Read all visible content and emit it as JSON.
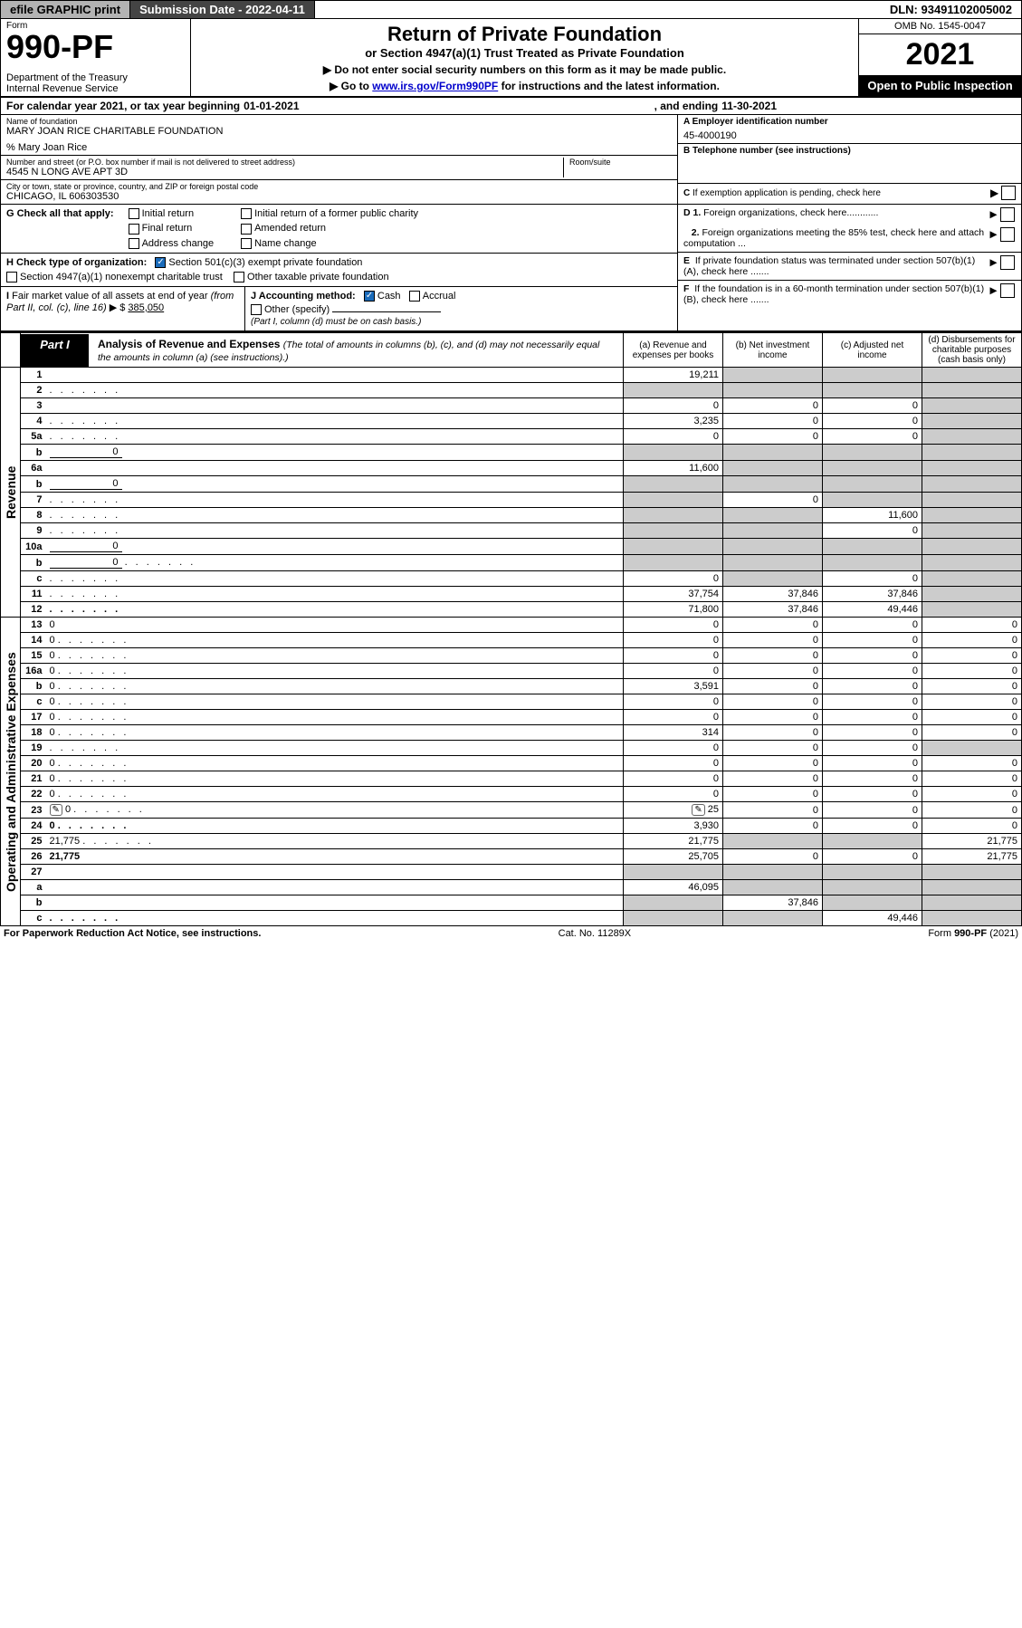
{
  "topbar": {
    "efile": "efile GRAPHIC print",
    "submission": "Submission Date - 2022-04-11",
    "dln": "DLN: 93491102005002"
  },
  "header": {
    "form_label": "Form",
    "form_no": "990-PF",
    "dept": "Department of the Treasury\nInternal Revenue Service",
    "title": "Return of Private Foundation",
    "subtitle": "or Section 4947(a)(1) Trust Treated as Private Foundation",
    "bullet1": "▶ Do not enter social security numbers on this form as it may be made public.",
    "bullet2_pre": "▶ Go to ",
    "bullet2_link": "www.irs.gov/Form990PF",
    "bullet2_post": " for instructions and the latest information.",
    "omb": "OMB No. 1545-0047",
    "year": "2021",
    "openbox": "Open to Public Inspection"
  },
  "yearline": {
    "pre": "For calendar year 2021, or tax year beginning ",
    "begin": "01-01-2021",
    "mid": ", and ending ",
    "end": "11-30-2021"
  },
  "info": {
    "name_label": "Name of foundation",
    "name": "MARY JOAN RICE CHARITABLE FOUNDATION",
    "care_of": "% Mary Joan Rice",
    "addr_label": "Number and street (or P.O. box number if mail is not delivered to street address)",
    "addr": "4545 N LONG AVE APT 3D",
    "room_label": "Room/suite",
    "city_label": "City or town, state or province, country, and ZIP or foreign postal code",
    "city": "CHICAGO, IL  606303530",
    "A_label": "A Employer identification number",
    "A_val": "45-4000190",
    "B_label": "B Telephone number (see instructions)",
    "C_label": "C If exemption application is pending, check here",
    "D1": "D 1. Foreign organizations, check here............",
    "D2": "   2. Foreign organizations meeting the 85% test, check here and attach computation ...",
    "E": "E  If private foundation status was terminated under section 507(b)(1)(A), check here .......",
    "F": "F  If the foundation is in a 60-month termination under section 507(b)(1)(B), check here .......",
    "G_label": "G Check all that apply:",
    "G_opts": [
      "Initial return",
      "Final return",
      "Address change",
      "Initial return of a former public charity",
      "Amended return",
      "Name change"
    ],
    "H_label": "H Check type of organization:",
    "H_501": "Section 501(c)(3) exempt private foundation",
    "H_4947": "Section 4947(a)(1) nonexempt charitable trust",
    "H_other": "Other taxable private foundation",
    "I_label": "I Fair market value of all assets at end of year (from Part II, col. (c), line 16) ▶ $",
    "I_val": "385,050",
    "J_label": "J Accounting method:",
    "J_cash": "Cash",
    "J_accrual": "Accrual",
    "J_other": "Other (specify)",
    "J_note": "(Part I, column (d) must be on cash basis.)"
  },
  "part1": {
    "tag": "Part I",
    "title": "Analysis of Revenue and Expenses",
    "note": "(The total of amounts in columns (b), (c), and (d) may not necessarily equal the amounts in column (a) (see instructions).)",
    "col_a": "(a)   Revenue and expenses per books",
    "col_b": "(b)   Net investment income",
    "col_c": "(c)   Adjusted net income",
    "col_d": "(d)   Disbursements for charitable purposes (cash basis only)",
    "side_rev": "Revenue",
    "side_exp": "Operating and Administrative Expenses",
    "rows": [
      {
        "n": "1",
        "d": "",
        "a": "19,211",
        "b": "",
        "c": "",
        "shade": [
          "b",
          "c",
          "d"
        ]
      },
      {
        "n": "2",
        "d": "",
        "a": "",
        "b": "",
        "c": "",
        "shade": [
          "a",
          "b",
          "c",
          "d"
        ],
        "dots": true
      },
      {
        "n": "3",
        "d": "",
        "a": "0",
        "b": "0",
        "c": "0",
        "shade": [
          "d"
        ]
      },
      {
        "n": "4",
        "d": "",
        "a": "3,235",
        "b": "0",
        "c": "0",
        "shade": [
          "d"
        ],
        "dots": true
      },
      {
        "n": "5a",
        "d": "",
        "a": "0",
        "b": "0",
        "c": "0",
        "shade": [
          "d"
        ],
        "dots": true
      },
      {
        "n": "b",
        "d": "",
        "inline": "0",
        "a": "",
        "b": "",
        "c": "",
        "shade": [
          "a",
          "b",
          "c",
          "d"
        ]
      },
      {
        "n": "6a",
        "d": "",
        "a": "11,600",
        "b": "",
        "c": "",
        "shade": [
          "b",
          "c",
          "d"
        ]
      },
      {
        "n": "b",
        "d": "",
        "inline": "0",
        "a": "",
        "b": "",
        "c": "",
        "shade": [
          "a",
          "b",
          "c",
          "d"
        ]
      },
      {
        "n": "7",
        "d": "",
        "a": "",
        "b": "0",
        "c": "",
        "shade": [
          "a",
          "c",
          "d"
        ],
        "dots": true
      },
      {
        "n": "8",
        "d": "",
        "a": "",
        "b": "",
        "c": "11,600",
        "shade": [
          "a",
          "b",
          "d"
        ],
        "dots": true
      },
      {
        "n": "9",
        "d": "",
        "a": "",
        "b": "",
        "c": "0",
        "shade": [
          "a",
          "b",
          "d"
        ],
        "dots": true
      },
      {
        "n": "10a",
        "d": "",
        "inline": "0",
        "a": "",
        "b": "",
        "c": "",
        "shade": [
          "a",
          "b",
          "c",
          "d"
        ]
      },
      {
        "n": "b",
        "d": "",
        "inline": "0",
        "a": "",
        "b": "",
        "c": "",
        "shade": [
          "a",
          "b",
          "c",
          "d"
        ],
        "dots": true
      },
      {
        "n": "c",
        "d": "",
        "a": "0",
        "b": "",
        "c": "0",
        "shade": [
          "b",
          "d"
        ],
        "dots": true
      },
      {
        "n": "11",
        "d": "",
        "a": "37,754",
        "b": "37,846",
        "c": "37,846",
        "shade": [
          "d"
        ],
        "dots": true
      },
      {
        "n": "12",
        "d": "",
        "a": "71,800",
        "b": "37,846",
        "c": "49,446",
        "shade": [
          "d"
        ],
        "dots": true,
        "bold": true
      },
      {
        "n": "13",
        "d": "0",
        "a": "0",
        "b": "0",
        "c": "0"
      },
      {
        "n": "14",
        "d": "0",
        "a": "0",
        "b": "0",
        "c": "0",
        "dots": true
      },
      {
        "n": "15",
        "d": "0",
        "a": "0",
        "b": "0",
        "c": "0",
        "dots": true
      },
      {
        "n": "16a",
        "d": "0",
        "a": "0",
        "b": "0",
        "c": "0",
        "dots": true
      },
      {
        "n": "b",
        "d": "0",
        "a": "3,591",
        "b": "0",
        "c": "0",
        "dots": true
      },
      {
        "n": "c",
        "d": "0",
        "a": "0",
        "b": "0",
        "c": "0",
        "dots": true
      },
      {
        "n": "17",
        "d": "0",
        "a": "0",
        "b": "0",
        "c": "0",
        "dots": true
      },
      {
        "n": "18",
        "d": "0",
        "a": "314",
        "b": "0",
        "c": "0",
        "dots": true
      },
      {
        "n": "19",
        "d": "",
        "a": "0",
        "b": "0",
        "c": "0",
        "shade": [
          "d"
        ],
        "dots": true
      },
      {
        "n": "20",
        "d": "0",
        "a": "0",
        "b": "0",
        "c": "0",
        "dots": true
      },
      {
        "n": "21",
        "d": "0",
        "a": "0",
        "b": "0",
        "c": "0",
        "dots": true
      },
      {
        "n": "22",
        "d": "0",
        "a": "0",
        "b": "0",
        "c": "0",
        "dots": true
      },
      {
        "n": "23",
        "d": "0",
        "a": "25",
        "b": "0",
        "c": "0",
        "dots": true,
        "icon": true
      },
      {
        "n": "24",
        "d": "0",
        "a": "3,930",
        "b": "0",
        "c": "0",
        "dots": true,
        "bold": true
      },
      {
        "n": "25",
        "d": "21,775",
        "a": "21,775",
        "b": "",
        "c": "",
        "shade": [
          "b",
          "c"
        ],
        "dots": true
      },
      {
        "n": "26",
        "d": "21,775",
        "a": "25,705",
        "b": "0",
        "c": "0",
        "bold": true
      },
      {
        "n": "27",
        "d": "",
        "a": "",
        "b": "",
        "c": "",
        "shade": [
          "a",
          "b",
          "c",
          "d"
        ]
      },
      {
        "n": "a",
        "d": "",
        "a": "46,095",
        "b": "",
        "c": "",
        "shade": [
          "b",
          "c",
          "d"
        ],
        "bold": true
      },
      {
        "n": "b",
        "d": "",
        "a": "",
        "b": "37,846",
        "c": "",
        "shade": [
          "a",
          "c",
          "d"
        ],
        "bold": true
      },
      {
        "n": "c",
        "d": "",
        "a": "",
        "b": "",
        "c": "49,446",
        "shade": [
          "a",
          "b",
          "d"
        ],
        "bold": true,
        "dots": true
      }
    ]
  },
  "footer": {
    "left": "For Paperwork Reduction Act Notice, see instructions.",
    "mid": "Cat. No. 11289X",
    "right": "Form 990-PF (2021)"
  },
  "colors": {
    "topbar_btn_bg": "#b3b3b3",
    "submission_bg": "#444444",
    "link": "#0000cc",
    "check_bg": "#1a6bba",
    "shade": "#cccccc"
  }
}
